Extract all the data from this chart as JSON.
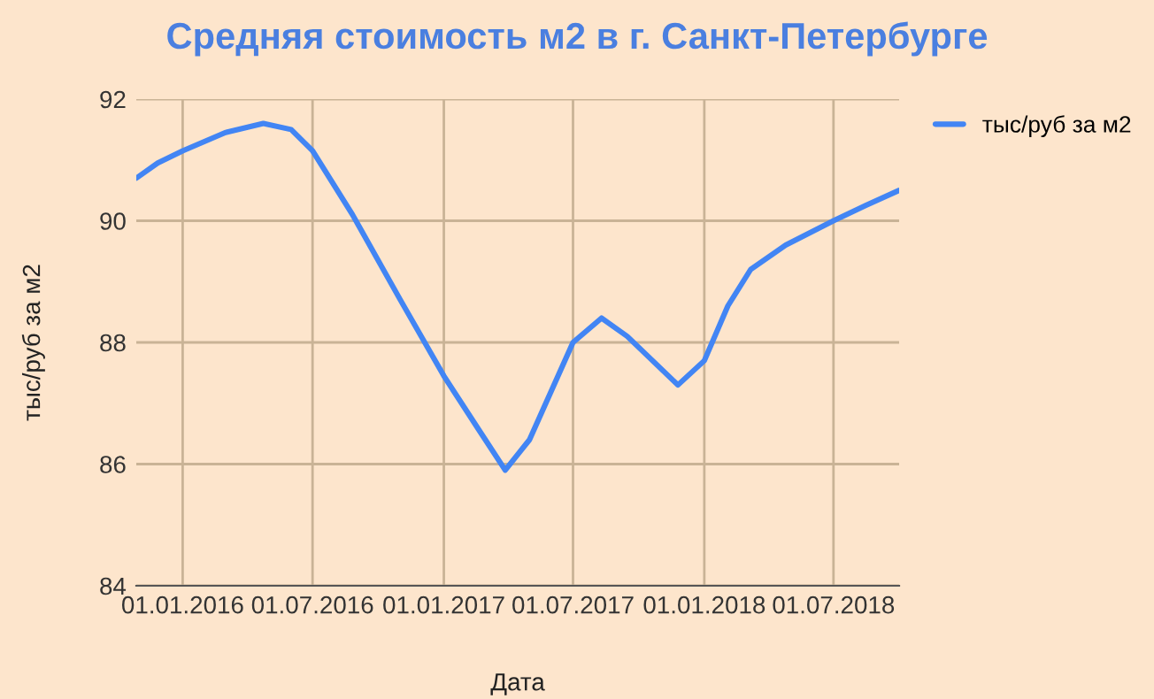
{
  "chart_data": {
    "type": "line",
    "title": "Средняя стоимость м2 в г. Санкт-Петербурге",
    "xlabel": "Дата",
    "ylabel": "тыс/руб за м2",
    "x": [
      "2015-10-28",
      "2015-11-27",
      "2016-01-01",
      "2016-03-01",
      "2016-04-23",
      "2016-06-01",
      "2016-07-01",
      "2016-08-26",
      "2016-11-01",
      "2017-01-01",
      "2017-02-17",
      "2017-03-28",
      "2017-05-01",
      "2017-07-01",
      "2017-08-10",
      "2017-09-15",
      "2017-11-25",
      "2018-01-01",
      "2018-02-03",
      "2018-03-07",
      "2018-04-25",
      "2018-07-01",
      "2018-08-15",
      "2018-10-01"
    ],
    "series": [
      {
        "name": "тыс/руб за м2",
        "color": "#4285f4",
        "values": [
          90.7,
          90.95,
          91.15,
          91.45,
          91.6,
          91.5,
          91.15,
          90.1,
          88.7,
          87.45,
          86.6,
          85.9,
          86.4,
          88.0,
          88.4,
          88.1,
          87.3,
          87.7,
          88.6,
          89.2,
          89.6,
          90.0,
          90.25,
          90.5
        ]
      }
    ],
    "xlim": [
      "2015-10-28",
      "2018-10-01"
    ],
    "xticks": [
      {
        "value": "2016-01-01",
        "label": "01.01.2016"
      },
      {
        "value": "2016-07-01",
        "label": "01.07.2016"
      },
      {
        "value": "2017-01-01",
        "label": "01.01.2017"
      },
      {
        "value": "2017-07-01",
        "label": "01.07.2017"
      },
      {
        "value": "2018-01-01",
        "label": "01.01.2018"
      },
      {
        "value": "2018-07-01",
        "label": "01.07.2018"
      }
    ],
    "ylim": [
      84,
      92
    ],
    "yticks": [
      84,
      86,
      88,
      90,
      92
    ],
    "grid": true,
    "legend": "top right",
    "marker": "none",
    "line_style": "solid"
  }
}
